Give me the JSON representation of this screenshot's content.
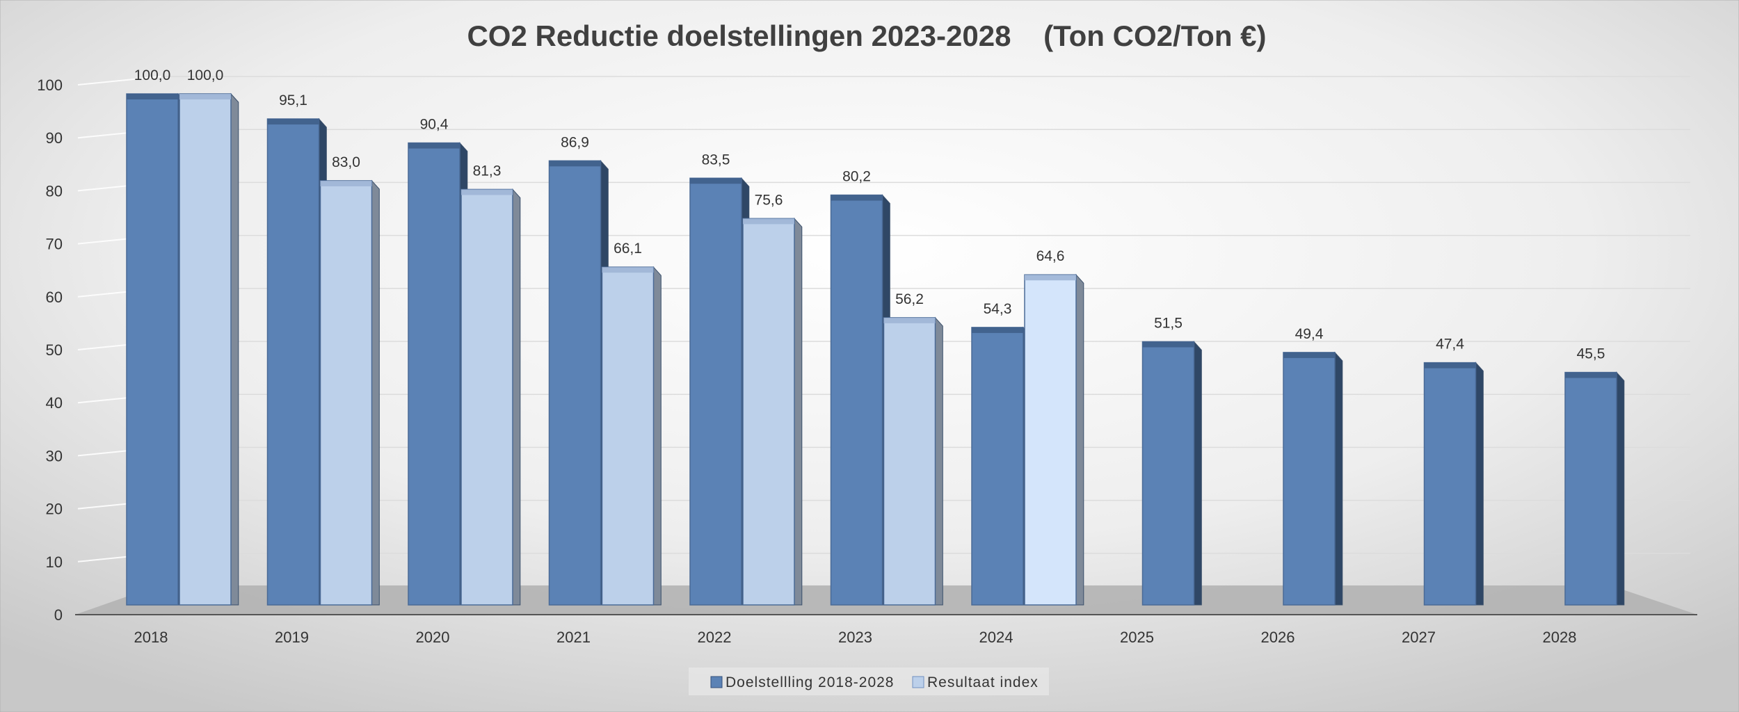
{
  "chart_data": {
    "type": "bar",
    "title": "CO2 Reductie doelstellingen 2023-2028    (Ton CO2/Ton €)",
    "xlabel": "",
    "ylabel": "",
    "ylim": [
      0,
      100
    ],
    "yticks": [
      "0",
      "10",
      "20",
      "30",
      "40",
      "50",
      "60",
      "70",
      "80",
      "90",
      "100"
    ],
    "categories": [
      "2018",
      "2019",
      "2020",
      "2021",
      "2022",
      "2023",
      "2024",
      "2025",
      "2026",
      "2027",
      "2028"
    ],
    "series": [
      {
        "name": "Doelstellling 2018-2028",
        "values": [
          100.0,
          95.1,
          90.4,
          86.9,
          83.5,
          80.2,
          54.3,
          51.5,
          49.4,
          47.4,
          45.5
        ],
        "labels": [
          "100,0",
          "95,1",
          "90,4",
          "86,9",
          "83,5",
          "80,2",
          "54,3",
          "51,5",
          "49,4",
          "47,4",
          "45,5"
        ]
      },
      {
        "name": "Resultaat index",
        "values": [
          100.0,
          83.0,
          81.3,
          66.1,
          75.6,
          56.2,
          64.6,
          null,
          null,
          null,
          null
        ],
        "labels": [
          "100,0",
          "83,0",
          "81,3",
          "66,1",
          "75,6",
          "56,2",
          "64,6",
          "",
          "",
          "",
          ""
        ]
      }
    ],
    "legend_position": "bottom",
    "grid": true,
    "colors": {
      "series1": "#5b82b5",
      "series1_dark": "#2f4766",
      "series2": "#bcd0ea",
      "series2_highlight": "#d4e5fb",
      "floor": "#b3b3b3"
    }
  }
}
